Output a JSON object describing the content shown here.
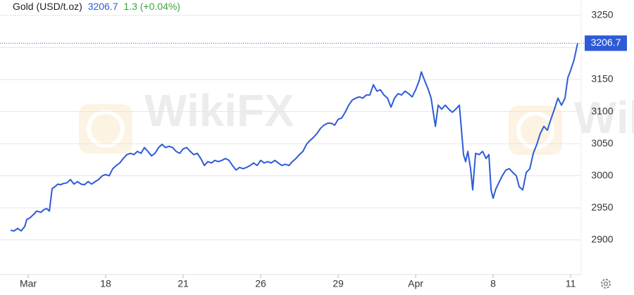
{
  "chart_data": {
    "type": "line",
    "title": "Gold (USD/t.oz)",
    "change": "1.3 (+0.04%)",
    "watermark": "WikiFX",
    "xlim": [
      -0.364,
      7.136
    ],
    "xticks": [
      {
        "value": 0,
        "label": "Mar"
      },
      {
        "value": 1,
        "label": "18"
      },
      {
        "value": 2,
        "label": "21"
      },
      {
        "value": 3,
        "label": "26"
      },
      {
        "value": 4,
        "label": "29"
      },
      {
        "value": 5,
        "label": "Apr"
      },
      {
        "value": 6,
        "label": "8"
      },
      {
        "value": 7,
        "label": "11"
      }
    ],
    "ylim": [
      2846,
      3274
    ],
    "yticks": [
      2900,
      2950,
      3000,
      3050,
      3100,
      3150,
      3200,
      3250
    ],
    "grid": true,
    "series": [
      {
        "name": "Gold",
        "color": "#2d5bd8",
        "x": [
          -0.227,
          -0.182,
          -0.136,
          -0.091,
          -0.045,
          -0.018,
          0.018,
          0.073,
          0.109,
          0.164,
          0.2,
          0.236,
          0.273,
          0.309,
          0.345,
          0.382,
          0.418,
          0.455,
          0.5,
          0.545,
          0.591,
          0.636,
          0.682,
          0.727,
          0.773,
          0.818,
          0.864,
          0.909,
          0.955,
          1,
          1.045,
          1.091,
          1.136,
          1.182,
          1.227,
          1.273,
          1.318,
          1.364,
          1.409,
          1.455,
          1.5,
          1.545,
          1.591,
          1.636,
          1.682,
          1.727,
          1.773,
          1.818,
          1.864,
          1.909,
          1.955,
          2,
          2.045,
          2.091,
          2.136,
          2.182,
          2.227,
          2.273,
          2.318,
          2.364,
          2.409,
          2.455,
          2.5,
          2.545,
          2.591,
          2.636,
          2.682,
          2.727,
          2.773,
          2.818,
          2.864,
          2.909,
          2.955,
          3,
          3.045,
          3.091,
          3.136,
          3.182,
          3.227,
          3.273,
          3.318,
          3.364,
          3.409,
          3.455,
          3.5,
          3.545,
          3.591,
          3.636,
          3.682,
          3.727,
          3.773,
          3.818,
          3.864,
          3.909,
          3.955,
          4,
          4.045,
          4.091,
          4.136,
          4.182,
          4.227,
          4.273,
          4.318,
          4.364,
          4.409,
          4.455,
          4.5,
          4.545,
          4.591,
          4.636,
          4.682,
          4.727,
          4.773,
          4.818,
          4.864,
          4.909,
          4.955,
          5,
          5.045,
          5.073,
          5.118,
          5.164,
          5.2,
          5.227,
          5.255,
          5.291,
          5.336,
          5.382,
          5.427,
          5.473,
          5.518,
          5.564,
          5.591,
          5.618,
          5.645,
          5.673,
          5.709,
          5.736,
          5.773,
          5.818,
          5.864,
          5.909,
          5.945,
          5.973,
          6,
          6.036,
          6.073,
          6.118,
          6.164,
          6.209,
          6.255,
          6.3,
          6.336,
          6.382,
          6.427,
          6.473,
          6.518,
          6.564,
          6.609,
          6.655,
          6.7,
          6.745,
          6.791,
          6.836,
          6.882,
          6.927,
          6.964,
          7,
          7.045,
          7.091
        ],
        "values": [
          2915,
          2914,
          2918,
          2914,
          2921,
          2932,
          2934,
          2940,
          2945,
          2943,
          2947,
          2949,
          2945,
          2980,
          2983,
          2987,
          2986,
          2988,
          2989,
          2994,
          2987,
          2991,
          2987,
          2986,
          2991,
          2987,
          2991,
          2994,
          3000,
          3002,
          3000,
          3011,
          3016,
          3020,
          3027,
          3033,
          3035,
          3033,
          3038,
          3035,
          3044,
          3038,
          3031,
          3035,
          3044,
          3049,
          3044,
          3046,
          3044,
          3038,
          3035,
          3042,
          3044,
          3038,
          3033,
          3035,
          3027,
          3016,
          3022,
          3020,
          3024,
          3022,
          3024,
          3027,
          3024,
          3016,
          3009,
          3013,
          3011,
          3013,
          3016,
          3020,
          3016,
          3024,
          3020,
          3022,
          3020,
          3024,
          3020,
          3016,
          3018,
          3016,
          3022,
          3027,
          3033,
          3038,
          3049,
          3055,
          3060,
          3066,
          3074,
          3079,
          3082,
          3082,
          3079,
          3088,
          3090,
          3099,
          3110,
          3118,
          3121,
          3123,
          3121,
          3126,
          3126,
          3142,
          3132,
          3134,
          3126,
          3121,
          3107,
          3121,
          3128,
          3126,
          3132,
          3128,
          3123,
          3134,
          3148,
          3162,
          3148,
          3134,
          3121,
          3099,
          3077,
          3110,
          3104,
          3110,
          3104,
          3099,
          3104,
          3110,
          3071,
          3033,
          3022,
          3038,
          3011,
          2978,
          3035,
          3033,
          3038,
          3027,
          3033,
          2978,
          2965,
          2980,
          2989,
          3000,
          3009,
          3011,
          3005,
          3000,
          2983,
          2978,
          3005,
          3011,
          3035,
          3049,
          3066,
          3077,
          3071,
          3088,
          3104,
          3121,
          3110,
          3121,
          3153,
          3164,
          3181,
          3206.7
        ]
      }
    ]
  }
}
